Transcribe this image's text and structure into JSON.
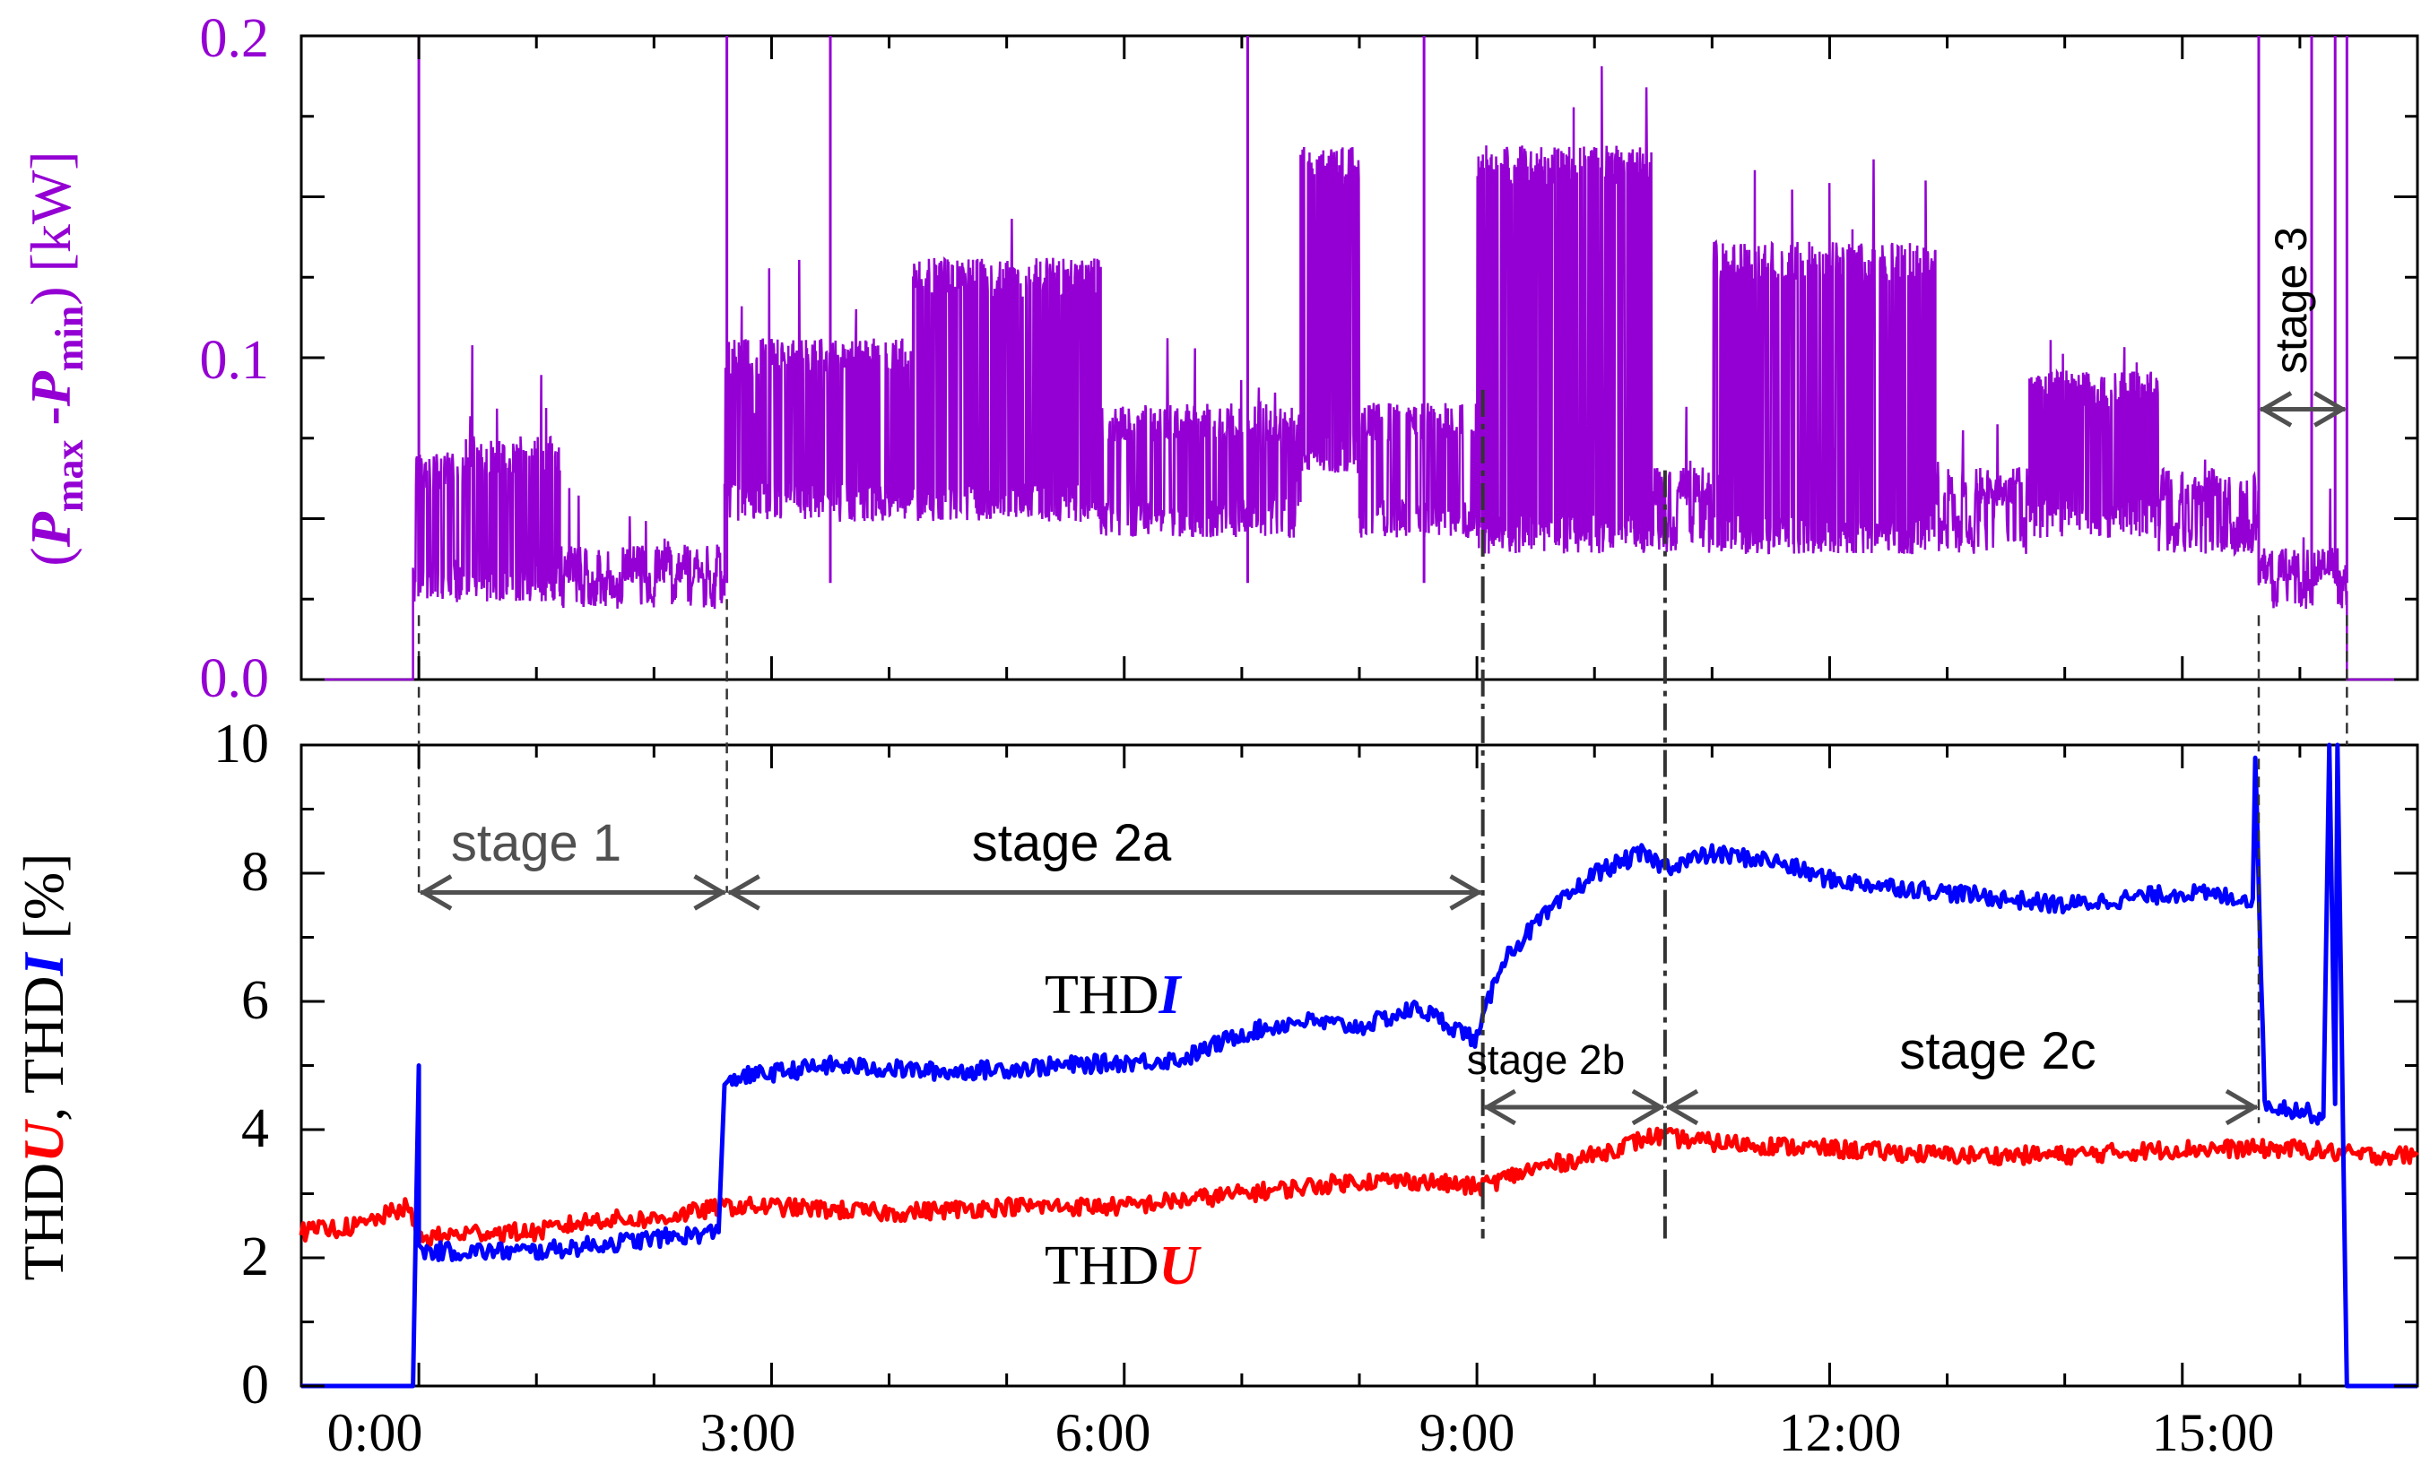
{
  "colors": {
    "power": "#9400D3",
    "thdi": "#0000FF",
    "thdu": "#FF0000",
    "axis": "#000000",
    "annotation": "#505050"
  },
  "chart_data": [
    {
      "type": "line",
      "panel": "top",
      "ylabel_open": "(",
      "ylabel_p1": "P",
      "ylabel_sub1": "max",
      "ylabel_dash": " -",
      "ylabel_p2": "P",
      "ylabel_sub2": "min",
      "ylabel_close": ") [kW]",
      "xlim": [
        -1.0,
        17.0
      ],
      "ylim": [
        0.0,
        0.2
      ],
      "yticks": [
        "0.0",
        "0.1",
        "0.2"
      ],
      "ytick_values": [
        0.0,
        0.1,
        0.2
      ],
      "series": [
        {
          "name": "Pmax-Pmin",
          "color": "#9400D3",
          "style": "noisy",
          "segments": [
            {
              "x0": -1.0,
              "x1": -0.05,
              "base": 0.0,
              "hi": 0.0,
              "switch": 0.0
            },
            {
              "x0": -0.05,
              "x1": 0.4,
              "base": 0.03,
              "hi": 0.065,
              "switch": 0.25
            },
            {
              "x0": 0.4,
              "x1": 1.2,
              "base": 0.03,
              "hi": 0.07,
              "switch": 0.45
            },
            {
              "x0": 1.2,
              "x1": 2.6,
              "base": 0.028,
              "hi": 0.036,
              "switch": 0.1
            },
            {
              "x0": 2.6,
              "x1": 4.2,
              "base": 0.055,
              "hi": 0.1,
              "switch": 0.5
            },
            {
              "x0": 4.2,
              "x1": 5.8,
              "base": 0.055,
              "hi": 0.125,
              "switch": 0.45
            },
            {
              "x0": 5.8,
              "x1": 7.5,
              "base": 0.05,
              "hi": 0.08,
              "switch": 0.35
            },
            {
              "x0": 7.5,
              "x1": 8.0,
              "base": 0.07,
              "hi": 0.16,
              "switch": 0.6
            },
            {
              "x0": 8.0,
              "x1": 9.0,
              "base": 0.05,
              "hi": 0.08,
              "switch": 0.3
            },
            {
              "x0": 9.0,
              "x1": 10.5,
              "base": 0.045,
              "hi": 0.16,
              "switch": 0.55
            },
            {
              "x0": 10.5,
              "x1": 11.0,
              "base": 0.045,
              "hi": 0.06,
              "switch": 0.15
            },
            {
              "x0": 11.0,
              "x1": 12.9,
              "base": 0.045,
              "hi": 0.13,
              "switch": 0.5
            },
            {
              "x0": 12.9,
              "x1": 13.7,
              "base": 0.045,
              "hi": 0.06,
              "switch": 0.15
            },
            {
              "x0": 13.7,
              "x1": 14.8,
              "base": 0.05,
              "hi": 0.09,
              "switch": 0.55
            },
            {
              "x0": 14.8,
              "x1": 15.65,
              "base": 0.045,
              "hi": 0.06,
              "switch": 0.2
            },
            {
              "x0": 15.65,
              "x1": 16.4,
              "base": 0.028,
              "hi": 0.035,
              "switch": 0.1
            },
            {
              "x0": 16.4,
              "x1": 17.0,
              "base": 0.0,
              "hi": 0.0,
              "switch": 0.0
            }
          ],
          "spikes_x": [
            0.0,
            2.62,
            3.5,
            7.05,
            8.55,
            15.65,
            16.1,
            16.3,
            16.4
          ],
          "spikes_y": [
            0.2,
            0.2,
            0.2,
            0.2,
            0.2,
            0.2,
            0.2,
            0.2,
            0.2
          ]
        }
      ]
    },
    {
      "type": "line",
      "panel": "bottom",
      "ylabel_a": "THD",
      "ylabel_u": "U",
      "ylabel_b": ", THD",
      "ylabel_i": "I",
      "ylabel_c": " [%]",
      "xlim": [
        -1.0,
        17.0
      ],
      "ylim": [
        0,
        10
      ],
      "xticks": [
        "0:00",
        "3:00",
        "6:00",
        "9:00",
        "12:00",
        "15:00"
      ],
      "xtick_values": [
        0,
        3,
        6,
        9,
        12,
        15
      ],
      "yticks": [
        "0",
        "2",
        "4",
        "6",
        "8",
        "10"
      ],
      "ytick_values": [
        0,
        2,
        4,
        6,
        8,
        10
      ],
      "series": [
        {
          "name": "THDI",
          "color": "#0000FF",
          "x": [
            -1.0,
            -0.05,
            -0.05,
            0.0,
            0.0,
            0.05,
            1.0,
            2.0,
            2.55,
            2.6,
            2.65,
            3.5,
            4.5,
            5.5,
            6.5,
            7.0,
            7.5,
            8.0,
            8.5,
            9.0,
            9.2,
            9.5,
            10.0,
            10.4,
            10.6,
            11.0,
            11.5,
            12.0,
            13.0,
            14.0,
            15.0,
            15.6,
            15.62,
            15.7,
            16.0,
            16.2,
            16.25,
            16.3,
            16.32,
            16.4,
            17.0
          ],
          "y": [
            0.0,
            0.0,
            0.0,
            5.0,
            2.2,
            2.1,
            2.1,
            2.3,
            2.4,
            4.7,
            4.8,
            5.0,
            4.9,
            5.0,
            5.1,
            5.5,
            5.7,
            5.6,
            5.9,
            5.4,
            6.6,
            7.2,
            8.0,
            8.3,
            8.1,
            8.3,
            8.2,
            7.9,
            7.7,
            7.5,
            7.7,
            7.6,
            9.8,
            4.4,
            4.3,
            4.2,
            10.0,
            4.4,
            10.0,
            0.0,
            0.0
          ]
        },
        {
          "name": "THDU",
          "color": "#FF0000",
          "x": [
            -1.0,
            -0.5,
            -0.1,
            0.0,
            0.5,
            1.0,
            1.5,
            2.0,
            2.6,
            3.0,
            4.0,
            5.0,
            6.0,
            7.0,
            7.5,
            8.0,
            8.5,
            9.0,
            9.5,
            10.0,
            10.5,
            11.0,
            12.0,
            13.0,
            14.0,
            15.0,
            16.0,
            16.5,
            17.0
          ],
          "y": [
            2.4,
            2.5,
            2.8,
            2.3,
            2.4,
            2.4,
            2.6,
            2.6,
            2.8,
            2.8,
            2.7,
            2.8,
            2.8,
            3.0,
            3.1,
            3.2,
            3.2,
            3.1,
            3.4,
            3.6,
            3.9,
            3.8,
            3.7,
            3.6,
            3.6,
            3.7,
            3.7,
            3.6,
            3.6
          ]
        }
      ],
      "series_labels": {
        "thdi_a": "THD",
        "thdi_b": "I",
        "thdu_a": "THD",
        "thdu_b": "U"
      },
      "annotations": {
        "stage1": "stage 1",
        "stage2a": "stage 2a",
        "stage2b": "stage 2b",
        "stage2c": "stage 2c",
        "stage3": "stage 3"
      },
      "stage_boundaries": [
        0.0,
        2.62,
        9.05,
        10.6,
        15.65,
        16.4
      ]
    }
  ]
}
